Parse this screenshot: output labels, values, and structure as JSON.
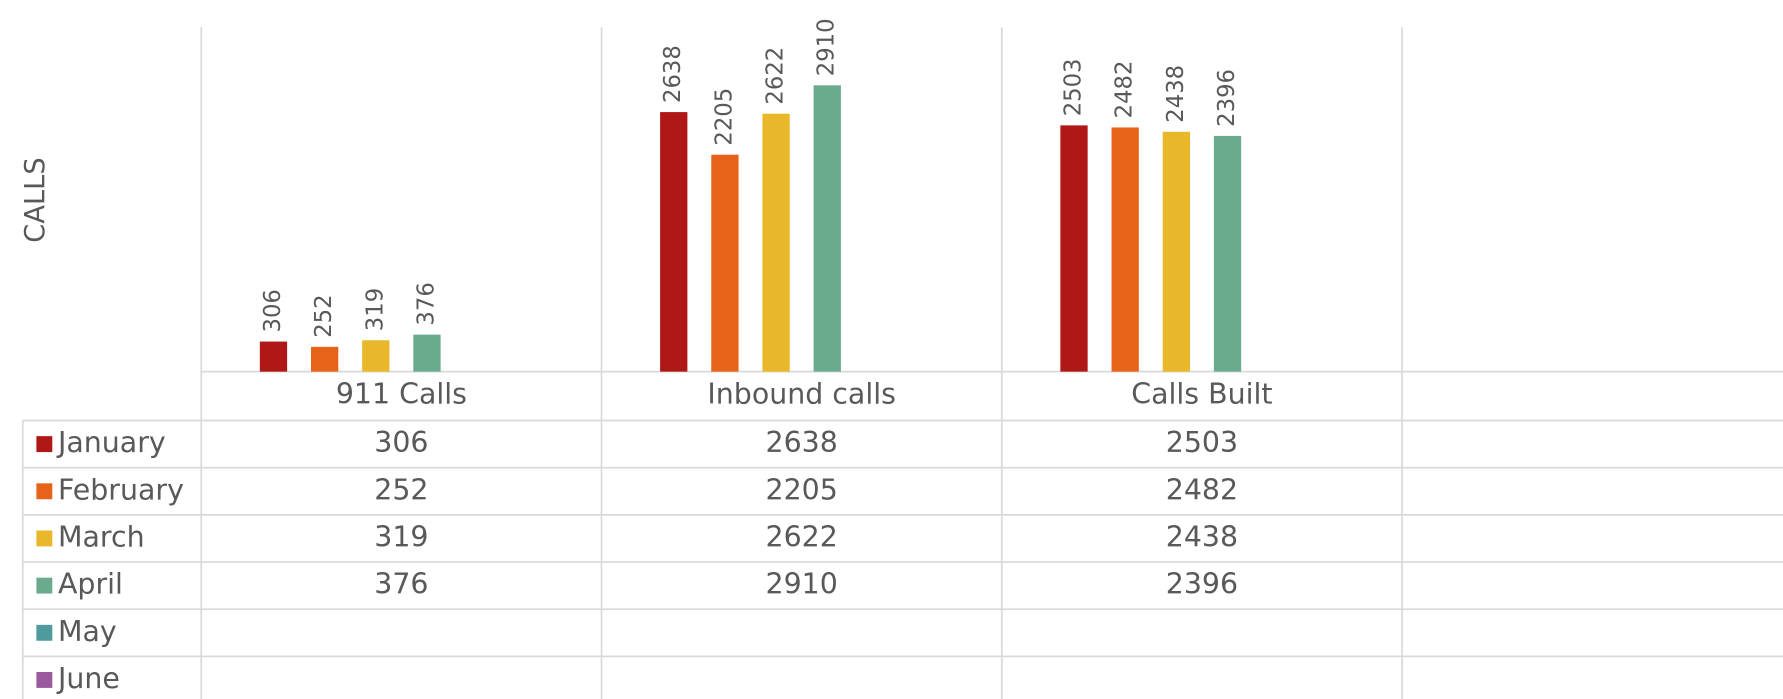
{
  "chart_data": {
    "type": "bar",
    "y_axis_label": "CALLS",
    "categories": [
      "911 Calls",
      "Inbound calls",
      "Calls Built",
      null
    ],
    "series": [
      {
        "name": "January",
        "color": "#b01717",
        "values": [
          306,
          2638,
          2503,
          null
        ]
      },
      {
        "name": "February",
        "color": "#e8631a",
        "values": [
          252,
          2205,
          2482,
          null
        ]
      },
      {
        "name": "March",
        "color": "#e8b82a",
        "values": [
          319,
          2622,
          2438,
          null
        ]
      },
      {
        "name": "April",
        "color": "#6aab8e",
        "values": [
          376,
          2910,
          2396,
          null
        ]
      },
      {
        "name": "May",
        "color": "#4f9a9c",
        "values": [
          null,
          null,
          null,
          null
        ]
      },
      {
        "name": "June",
        "color": "#9b5a9e",
        "values": [
          null,
          null,
          null,
          null
        ]
      }
    ],
    "ylim": [
      0,
      3500
    ],
    "data_table": true
  }
}
